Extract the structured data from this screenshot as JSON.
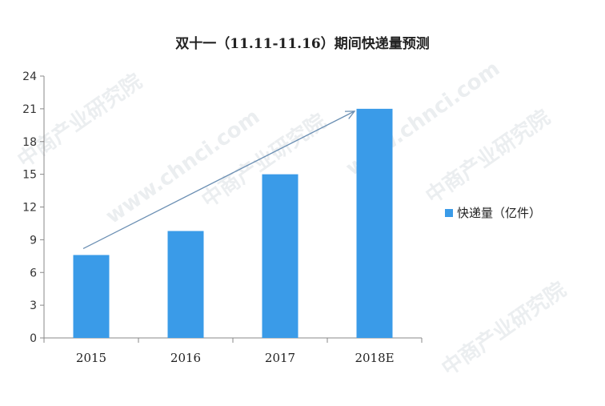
{
  "chart_data": {
    "type": "bar",
    "title": "双十一（11.11-11.16）期间快递量预测",
    "categories": [
      "2015",
      "2016",
      "2017",
      "2018E"
    ],
    "series": [
      {
        "name": "快递量（亿件）",
        "values": [
          7.6,
          9.8,
          15.0,
          21.0
        ],
        "color": "#3a9be8"
      }
    ],
    "yticks": [
      0,
      3,
      6,
      9,
      12,
      15,
      18,
      21,
      24
    ],
    "ylim": [
      0,
      24
    ],
    "grid": false,
    "legend": "right",
    "annotation": "trend-arrow"
  },
  "watermark": {
    "texts": [
      "中商产业研究院",
      "www.chnci.com"
    ],
    "color": "#dfe3e7"
  }
}
